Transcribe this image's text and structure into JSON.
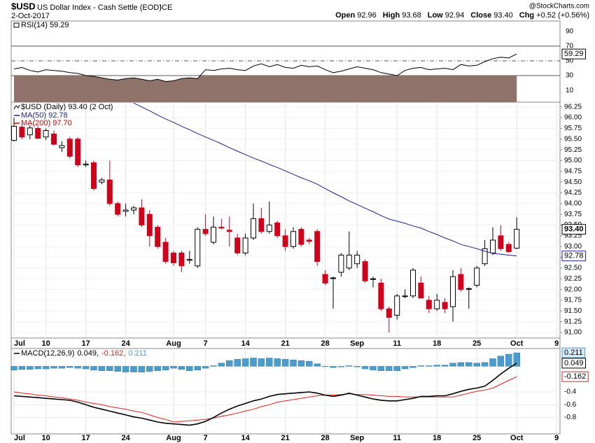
{
  "header": {
    "symbol": "$USD",
    "name": "US Dollar Index - Cash Settle (EOD)",
    "exchange": "ICE",
    "date": "2-Oct-2017",
    "brand": "@StockCharts.com",
    "stats": [
      {
        "label": "Open",
        "value": "92.96"
      },
      {
        "label": "High",
        "value": "93.68"
      },
      {
        "label": "Low",
        "value": "92.94"
      },
      {
        "label": "Close",
        "value": "93.40"
      },
      {
        "label": "Chg",
        "value": "+0.52 (+0.56%)"
      }
    ]
  },
  "chart_data": [
    {
      "type": "line",
      "title": "RSI(14) 59.29",
      "ylim": [
        -6,
        104
      ],
      "yticks": [
        10,
        30,
        50,
        70,
        90
      ],
      "overbought": 70,
      "midline": 50,
      "oversold": 30,
      "fill_color": "#8f736b",
      "series": [
        {
          "name": "RSI(14)",
          "color": "#000000",
          "values": [
            39,
            41,
            37,
            35,
            38,
            37,
            36,
            34,
            33,
            30,
            29,
            27,
            25,
            24,
            26,
            27,
            25,
            23,
            25,
            22,
            23,
            26,
            27,
            26,
            38,
            37,
            39,
            40,
            38,
            37,
            43,
            46,
            42,
            45,
            41,
            40,
            44,
            42,
            43,
            38,
            34,
            36,
            39,
            42,
            40,
            38,
            34,
            32,
            30,
            37,
            40,
            41,
            38,
            39,
            40,
            38,
            45,
            43,
            44,
            49,
            53,
            55,
            54,
            59.29,
            null,
            null,
            null,
            null,
            null
          ]
        }
      ]
    },
    {
      "type": "candlestick",
      "title": "$USD (Daily) 93.40 (2 Oct)",
      "ylim": [
        90.87,
        96.36
      ],
      "grid": true,
      "up_color": "#000000",
      "down_color": "#d0021b",
      "categories": [
        "Jul",
        null,
        null,
        null,
        "10",
        null,
        null,
        null,
        null,
        "17",
        null,
        null,
        null,
        null,
        "24",
        null,
        null,
        null,
        null,
        null,
        "Aug",
        null,
        null,
        null,
        "7",
        null,
        null,
        null,
        null,
        "14",
        null,
        null,
        null,
        null,
        "21",
        null,
        null,
        null,
        null,
        "28",
        null,
        null,
        null,
        "Sep",
        null,
        null,
        null,
        null,
        "11",
        null,
        null,
        null,
        null,
        "18",
        null,
        null,
        null,
        null,
        "25",
        null,
        null,
        null,
        null,
        "Oct",
        null,
        null,
        null,
        null,
        "9"
      ],
      "yticks": [
        96.25,
        {
          "value": 96,
          "label": "96.00"
        },
        95.75,
        {
          "value": 95.5,
          "label": "95.50"
        },
        95.25,
        {
          "value": 95,
          "label": "95.00"
        },
        94.75,
        {
          "value": 94.5,
          "label": "94.50"
        },
        94.25,
        {
          "value": 94,
          "label": "94.00"
        },
        93.75,
        {
          "value": 93.5,
          "label": "93.50"
        },
        93.25,
        {
          "value": 93,
          "label": "93.00"
        },
        92.75,
        {
          "value": 92.5,
          "label": "92.50"
        },
        92.25,
        {
          "value": 92,
          "label": "92.00"
        },
        91.75,
        {
          "value": 91.5,
          "label": "91.50"
        },
        91.25,
        {
          "value": 91,
          "label": "91.00"
        }
      ],
      "open": [
        95.47,
        95.78,
        95.6,
        95.75,
        95.55,
        95.62,
        95.3,
        95.5,
        95.5,
        94.9,
        94.95,
        94.5,
        94.55,
        94.0,
        93.82,
        93.85,
        93.9,
        93.75,
        93.45,
        93.1,
        92.85,
        92.85,
        92.68,
        92.55,
        93.4,
        93.1,
        93.45,
        93.38,
        93.2,
        92.85,
        93.2,
        93.65,
        93.35,
        93.55,
        93.25,
        93.0,
        93.4,
        93.15,
        93.35,
        92.35,
        92.27,
        92.4,
        92.5,
        92.6,
        92.65,
        92.25,
        92.15,
        91.55,
        91.4,
        91.85,
        91.85,
        92.15,
        91.75,
        91.55,
        91.7,
        91.6,
        92.35,
        92.02,
        92.1,
        92.6,
        92.85,
        93.25,
        93.05,
        92.96,
        null,
        null,
        null,
        null,
        null
      ],
      "high": [
        96.0,
        95.85,
        95.82,
        95.8,
        95.75,
        95.7,
        95.45,
        95.55,
        95.55,
        95.0,
        95.0,
        94.6,
        95.0,
        94.05,
        94.0,
        93.95,
        94.1,
        93.85,
        93.5,
        93.2,
        92.9,
        92.9,
        92.9,
        93.45,
        93.75,
        93.7,
        93.65,
        93.7,
        93.3,
        93.3,
        94.0,
        93.9,
        94.05,
        93.6,
        93.4,
        93.45,
        93.45,
        93.2,
        93.4,
        92.45,
        92.3,
        92.85,
        93.35,
        92.9,
        92.7,
        92.3,
        92.25,
        91.6,
        91.9,
        92.0,
        92.5,
        92.3,
        91.85,
        91.9,
        91.8,
        92.45,
        92.5,
        92.05,
        92.55,
        93.15,
        93.45,
        93.5,
        93.1,
        93.68,
        null,
        null,
        null,
        null,
        null
      ],
      "low": [
        95.45,
        95.5,
        95.5,
        95.5,
        95.48,
        95.35,
        95.2,
        95.05,
        94.85,
        94.85,
        94.3,
        94.45,
        93.95,
        93.7,
        93.7,
        93.75,
        93.45,
        93.0,
        92.95,
        92.6,
        92.55,
        92.4,
        92.6,
        92.5,
        93.25,
        93.05,
        93.4,
        93.0,
        92.8,
        92.8,
        93.15,
        93.3,
        93.3,
        93.2,
        92.9,
        92.95,
        93.0,
        93.05,
        92.55,
        92.1,
        91.55,
        92.3,
        92.45,
        92.5,
        92.15,
        92.05,
        91.5,
        91.0,
        91.3,
        91.8,
        91.8,
        91.8,
        91.45,
        91.5,
        91.45,
        91.25,
        91.95,
        91.55,
        92.05,
        92.55,
        92.8,
        92.9,
        92.85,
        92.94,
        null,
        null,
        null,
        null,
        null
      ],
      "close": [
        95.8,
        95.55,
        95.76,
        95.52,
        95.7,
        95.38,
        95.35,
        95.1,
        94.9,
        94.92,
        94.35,
        94.55,
        94.0,
        93.75,
        93.85,
        93.9,
        93.5,
        93.25,
        93.0,
        92.65,
        92.62,
        92.55,
        92.7,
        93.4,
        93.3,
        93.45,
        93.43,
        93.35,
        92.85,
        93.2,
        93.65,
        93.35,
        93.5,
        93.25,
        93.0,
        93.35,
        93.05,
        93.12,
        92.65,
        92.15,
        92.27,
        92.8,
        92.8,
        92.8,
        92.2,
        92.25,
        91.55,
        91.35,
        91.85,
        91.85,
        92.45,
        91.8,
        91.55,
        91.75,
        91.55,
        92.3,
        92.0,
        92.02,
        92.5,
        92.95,
        93.15,
        92.95,
        92.88,
        93.4,
        null,
        null,
        null,
        null,
        null
      ],
      "close_value_labels": [
        null,
        null,
        null,
        null,
        null,
        null,
        null,
        null,
        null,
        null,
        null,
        null,
        null,
        null,
        null,
        null,
        null,
        null,
        null,
        null,
        null,
        null,
        null,
        null,
        null,
        null,
        null,
        null,
        null,
        null,
        null,
        null,
        null,
        null,
        null,
        null,
        null,
        null,
        null,
        null,
        null,
        null,
        null,
        null,
        null,
        null,
        null,
        null,
        null,
        null,
        null,
        null,
        null,
        null,
        null,
        null,
        null,
        null,
        null,
        null,
        null,
        null,
        null,
        "93.40",
        null,
        null,
        null,
        null,
        null
      ],
      "series": [
        {
          "name": "MA(50) 92.78",
          "color": "#1f1f8f",
          "values": [
            null,
            null,
            null,
            null,
            null,
            null,
            null,
            null,
            null,
            null,
            null,
            null,
            null,
            null,
            null,
            96.34,
            96.25,
            96.16,
            96.06,
            95.97,
            95.89,
            95.8,
            95.72,
            95.63,
            95.55,
            95.47,
            95.39,
            95.3,
            95.22,
            95.14,
            95.06,
            94.99,
            94.91,
            94.84,
            94.76,
            94.68,
            94.6,
            94.53,
            94.45,
            94.35,
            94.25,
            94.16,
            94.06,
            93.98,
            93.89,
            93.81,
            93.72,
            93.64,
            93.59,
            93.54,
            93.48,
            93.43,
            93.35,
            93.28,
            93.2,
            93.13,
            93.05,
            93.0,
            92.95,
            92.89,
            92.84,
            92.82,
            92.8,
            92.78,
            null,
            null,
            null,
            null,
            null
          ]
        },
        {
          "name": "MA(200) 97.70",
          "color": "#cc0000"
        }
      ]
    },
    {
      "type": "macd",
      "legend": [
        "MACD(12,26,9)",
        "0.049,",
        "-0.162,",
        "0.211"
      ],
      "ylim": [
        -1.056,
        0.278
      ],
      "yticks": [
        -0.4,
        -0.6,
        -0.8
      ],
      "grid": true,
      "series": [
        {
          "name": "MACD",
          "color": "#000000",
          "values": [
            -0.46,
            -0.47,
            -0.48,
            -0.49,
            -0.5,
            -0.51,
            -0.52,
            -0.53,
            -0.56,
            -0.6,
            -0.64,
            -0.67,
            -0.7,
            -0.73,
            -0.76,
            -0.79,
            -0.81,
            -0.84,
            -0.87,
            -0.89,
            -0.9,
            -0.91,
            -0.92,
            -0.9,
            -0.86,
            -0.8,
            -0.73,
            -0.67,
            -0.62,
            -0.58,
            -0.54,
            -0.51,
            -0.47,
            -0.44,
            -0.43,
            -0.42,
            -0.41,
            -0.4,
            -0.42,
            -0.45,
            -0.47,
            -0.45,
            -0.42,
            -0.45,
            -0.48,
            -0.51,
            -0.53,
            -0.54,
            -0.54,
            -0.52,
            -0.5,
            -0.47,
            -0.47,
            -0.46,
            -0.46,
            -0.43,
            -0.39,
            -0.36,
            -0.34,
            -0.31,
            -0.22,
            -0.12,
            -0.03,
            0.049,
            null,
            null,
            null,
            null,
            null
          ]
        },
        {
          "name": "Signal",
          "color": "#e0201b",
          "values": [
            -0.4,
            -0.42,
            -0.43,
            -0.45,
            -0.46,
            -0.48,
            -0.49,
            -0.51,
            -0.53,
            -0.56,
            -0.58,
            -0.6,
            -0.63,
            -0.65,
            -0.67,
            -0.7,
            -0.72,
            -0.76,
            -0.8,
            -0.83,
            -0.87,
            -0.86,
            -0.85,
            -0.84,
            -0.83,
            -0.81,
            -0.78,
            -0.76,
            -0.73,
            -0.7,
            -0.67,
            -0.63,
            -0.6,
            -0.56,
            -0.54,
            -0.52,
            -0.5,
            -0.48,
            -0.46,
            -0.45,
            -0.45,
            -0.44,
            -0.43,
            -0.44,
            -0.44,
            -0.45,
            -0.46,
            -0.47,
            -0.47,
            -0.48,
            -0.48,
            -0.48,
            -0.48,
            -0.48,
            -0.48,
            -0.48,
            -0.45,
            -0.42,
            -0.39,
            -0.37,
            -0.34,
            -0.28,
            -0.22,
            -0.162,
            null,
            null,
            null,
            null,
            null
          ]
        },
        {
          "name": "Histogram",
          "color": "#4a9ccc",
          "values": [
            -0.06,
            -0.05,
            -0.05,
            -0.04,
            -0.04,
            -0.03,
            -0.03,
            -0.02,
            -0.03,
            -0.04,
            -0.06,
            -0.07,
            -0.07,
            -0.08,
            -0.09,
            -0.09,
            -0.09,
            -0.08,
            -0.07,
            -0.06,
            -0.03,
            -0.05,
            -0.07,
            -0.06,
            -0.03,
            0.01,
            0.05,
            0.09,
            0.11,
            0.12,
            0.13,
            0.12,
            0.13,
            0.12,
            0.11,
            0.1,
            0.09,
            0.08,
            0.04,
            0.0,
            -0.02,
            -0.01,
            0.01,
            -0.01,
            -0.04,
            -0.06,
            -0.07,
            -0.07,
            -0.07,
            -0.04,
            -0.02,
            0.01,
            0.01,
            0.02,
            0.02,
            0.05,
            0.06,
            0.06,
            0.05,
            0.06,
            0.12,
            0.16,
            0.19,
            0.211,
            null,
            null,
            null,
            null,
            null
          ]
        }
      ]
    }
  ]
}
